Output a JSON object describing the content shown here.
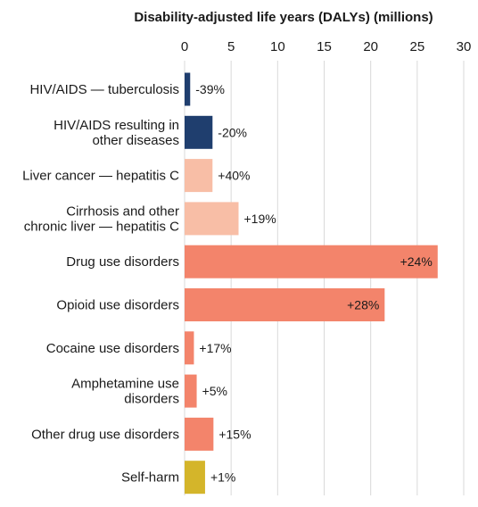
{
  "chart_data": {
    "type": "bar",
    "orientation": "horizontal",
    "title": "Disability-adjusted life years (DALYs) (millions)",
    "xlim": [
      0,
      30
    ],
    "ticks": [
      "0",
      "5",
      "10",
      "15",
      "20",
      "25",
      "30"
    ],
    "grid": true,
    "axis_position": "top",
    "categories": [
      [
        "HIV/AIDS — tuberculosis"
      ],
      [
        "HIV/AIDS resulting in",
        "other diseases"
      ],
      [
        "Liver cancer — hepatitis C"
      ],
      [
        "Cirrhosis and other",
        "chronic liver — hepatitis C"
      ],
      [
        "Drug use disorders"
      ],
      [
        "Opioid use disorders"
      ],
      [
        "Cocaine use disorders"
      ],
      [
        "Amphetamine use",
        "disorders"
      ],
      [
        "Other drug use disorders"
      ],
      [
        "Self-harm"
      ]
    ],
    "values": [
      0.6,
      3.0,
      3.0,
      5.8,
      27.2,
      21.5,
      1.0,
      1.3,
      3.1,
      2.2
    ],
    "data_labels": [
      "-39%",
      "-20%",
      "+40%",
      "+19%",
      "+24%",
      "+28%",
      "+17%",
      "+5%",
      "+15%",
      "+1%"
    ],
    "label_inside": [
      false,
      false,
      false,
      false,
      true,
      true,
      false,
      false,
      false,
      false
    ],
    "colors": [
      "#1f3e6e",
      "#1f3e6e",
      "#f8bea6",
      "#f8bea6",
      "#f3846b",
      "#f3846b",
      "#f3846b",
      "#f3846b",
      "#f3846b",
      "#d4b52a"
    ]
  }
}
